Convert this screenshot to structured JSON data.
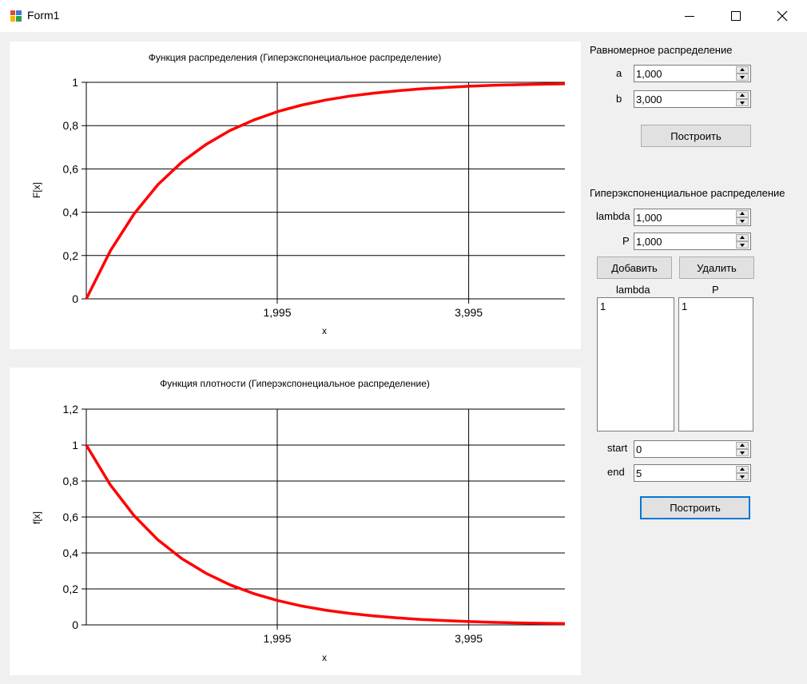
{
  "window": {
    "title": "Form1",
    "accent": "#0078d7"
  },
  "chart_data": [
    {
      "type": "line",
      "title": "Функция распределения (Гиперэкспонециальное распределение)",
      "xlabel": "x",
      "ylabel": "F[x]",
      "xlim": [
        0,
        5
      ],
      "ylim": [
        0,
        1
      ],
      "x_ticks": [
        "1,995",
        "3,995"
      ],
      "x_tick_values": [
        1.995,
        3.995
      ],
      "y_ticks": [
        "0",
        "0,2",
        "0,4",
        "0,6",
        "0,8",
        "1"
      ],
      "y_tick_values": [
        0,
        0.2,
        0.4,
        0.6,
        0.8,
        1
      ],
      "grid": true,
      "series": [
        {
          "color": "#ff0000",
          "x": [
            0,
            0.25,
            0.5,
            0.75,
            1,
            1.25,
            1.5,
            1.75,
            2,
            2.25,
            2.5,
            2.75,
            3,
            3.25,
            3.5,
            3.75,
            4,
            4.25,
            4.5,
            4.75,
            5
          ],
          "y": [
            0,
            0.221,
            0.393,
            0.528,
            0.632,
            0.713,
            0.777,
            0.826,
            0.865,
            0.895,
            0.918,
            0.936,
            0.95,
            0.961,
            0.97,
            0.976,
            0.982,
            0.986,
            0.989,
            0.991,
            0.993
          ]
        }
      ]
    },
    {
      "type": "line",
      "title": "Функция плотности (Гиперэкспонециальное распределение)",
      "xlabel": "x",
      "ylabel": "f[x]",
      "xlim": [
        0,
        5
      ],
      "ylim": [
        0,
        1.2
      ],
      "x_ticks": [
        "1,995",
        "3,995"
      ],
      "x_tick_values": [
        1.995,
        3.995
      ],
      "y_ticks": [
        "0",
        "0,2",
        "0,4",
        "0,6",
        "0,8",
        "1",
        "1,2"
      ],
      "y_tick_values": [
        0,
        0.2,
        0.4,
        0.6,
        0.8,
        1,
        1.2
      ],
      "grid": true,
      "series": [
        {
          "color": "#ff0000",
          "x": [
            0,
            0.25,
            0.5,
            0.75,
            1,
            1.25,
            1.5,
            1.75,
            2,
            2.25,
            2.5,
            2.75,
            3,
            3.25,
            3.5,
            3.75,
            4,
            4.25,
            4.5,
            4.75,
            5
          ],
          "y": [
            1,
            0.779,
            0.607,
            0.472,
            0.368,
            0.287,
            0.223,
            0.174,
            0.135,
            0.105,
            0.082,
            0.064,
            0.05,
            0.039,
            0.03,
            0.024,
            0.018,
            0.014,
            0.011,
            0.009,
            0.007
          ]
        }
      ]
    }
  ],
  "uniform": {
    "heading": "Равномерное распределение",
    "a_label": "a",
    "a_value": "1,000",
    "b_label": "b",
    "b_value": "3,000",
    "build_label": "Построить"
  },
  "hyper": {
    "heading": "Гиперэкспоненциальное распределение",
    "lambda_label": "lambda",
    "lambda_value": "1,000",
    "p_label": "P",
    "p_value": "1,000",
    "add_label": "Добавить",
    "delete_label": "Удалить",
    "list_lambda_header": "lambda",
    "list_p_header": "P",
    "lambda_items": [
      "1"
    ],
    "p_items": [
      "1"
    ],
    "start_label": "start",
    "start_value": "0",
    "end_label": "end",
    "end_value": "5",
    "build_label": "Построить"
  }
}
